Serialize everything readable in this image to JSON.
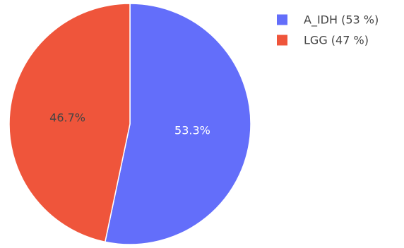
{
  "chart_data": {
    "type": "pie",
    "title": "",
    "slices": [
      {
        "label": "A_IDH",
        "value": 53.3,
        "text": "53.3%",
        "legend": "A_IDH (53 %)",
        "color": "#636efa",
        "text_color": "#ffffff"
      },
      {
        "label": "LGG",
        "value": 46.7,
        "text": "46.7%",
        "legend": "LGG (47 %)",
        "color": "#ef553b",
        "text_color": "#444444"
      }
    ],
    "direction": "clockwise",
    "start": "top",
    "legend_position": "top-right"
  }
}
